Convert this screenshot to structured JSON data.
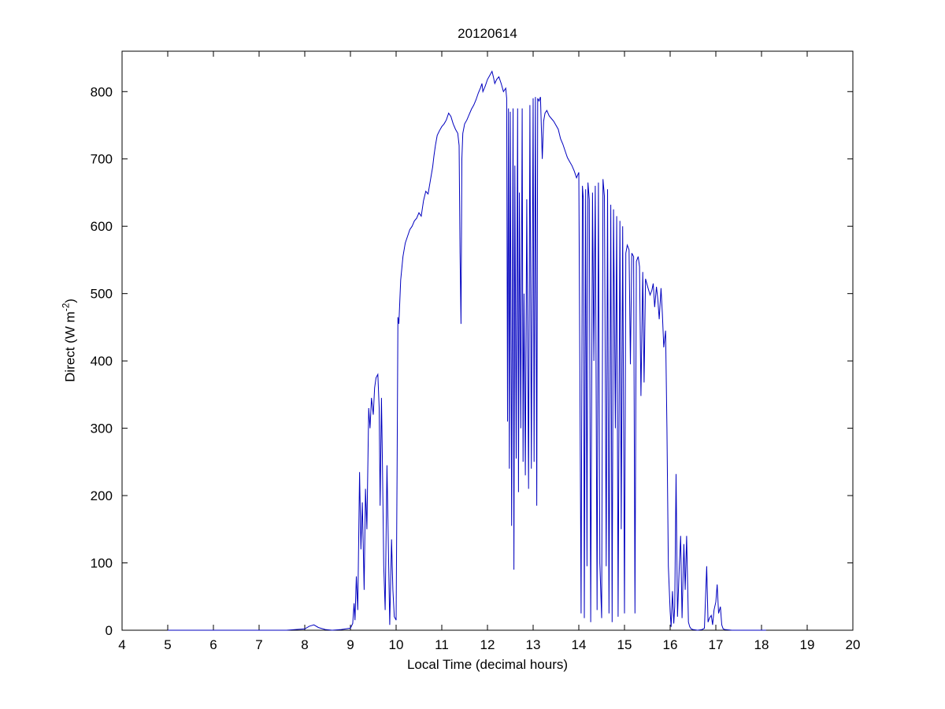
{
  "chart_data": {
    "type": "line",
    "title": "20120614",
    "xlabel": "Local Time (decimal hours)",
    "ylabel": {
      "pre": "Direct (W m",
      "sup": "-2",
      "post": ")"
    },
    "xlim": [
      4,
      20
    ],
    "ylim": [
      0,
      860
    ],
    "xticks": [
      4,
      5,
      6,
      7,
      8,
      9,
      10,
      11,
      12,
      13,
      14,
      15,
      16,
      17,
      18,
      19,
      20
    ],
    "yticks": [
      0,
      100,
      200,
      300,
      400,
      500,
      600,
      700,
      800
    ],
    "grid": false,
    "legend": "none",
    "colors": {
      "line": "#0000bf",
      "axis": "#000000",
      "background": "#ffffff"
    },
    "series": [
      {
        "name": "Direct",
        "points": [
          [
            5.0,
            0
          ],
          [
            5.3,
            0
          ],
          [
            5.6,
            0
          ],
          [
            6.0,
            0
          ],
          [
            6.4,
            0
          ],
          [
            6.8,
            0
          ],
          [
            7.2,
            0
          ],
          [
            7.6,
            0
          ],
          [
            8.0,
            2
          ],
          [
            8.1,
            6
          ],
          [
            8.2,
            8
          ],
          [
            8.3,
            4
          ],
          [
            8.45,
            1
          ],
          [
            8.6,
            0
          ],
          [
            8.8,
            1
          ],
          [
            9.0,
            3
          ],
          [
            9.05,
            10
          ],
          [
            9.08,
            40
          ],
          [
            9.1,
            15
          ],
          [
            9.13,
            80
          ],
          [
            9.16,
            30
          ],
          [
            9.2,
            235
          ],
          [
            9.23,
            120
          ],
          [
            9.26,
            190
          ],
          [
            9.3,
            60
          ],
          [
            9.33,
            210
          ],
          [
            9.36,
            150
          ],
          [
            9.4,
            330
          ],
          [
            9.43,
            300
          ],
          [
            9.46,
            345
          ],
          [
            9.5,
            320
          ],
          [
            9.53,
            360
          ],
          [
            9.56,
            375
          ],
          [
            9.6,
            380
          ],
          [
            9.63,
            330
          ],
          [
            9.65,
            185
          ],
          [
            9.68,
            345
          ],
          [
            9.7,
            250
          ],
          [
            9.73,
            95
          ],
          [
            9.76,
            30
          ],
          [
            9.8,
            245
          ],
          [
            9.83,
            130
          ],
          [
            9.86,
            8
          ],
          [
            9.9,
            135
          ],
          [
            9.93,
            60
          ],
          [
            9.96,
            20
          ],
          [
            10.0,
            15
          ],
          [
            10.02,
            230
          ],
          [
            10.04,
            465
          ],
          [
            10.06,
            455
          ],
          [
            10.1,
            520
          ],
          [
            10.15,
            555
          ],
          [
            10.2,
            575
          ],
          [
            10.25,
            585
          ],
          [
            10.3,
            595
          ],
          [
            10.35,
            600
          ],
          [
            10.4,
            608
          ],
          [
            10.45,
            612
          ],
          [
            10.5,
            620
          ],
          [
            10.55,
            615
          ],
          [
            10.6,
            638
          ],
          [
            10.65,
            652
          ],
          [
            10.7,
            648
          ],
          [
            10.75,
            668
          ],
          [
            10.8,
            688
          ],
          [
            10.83,
            705
          ],
          [
            10.86,
            720
          ],
          [
            10.9,
            735
          ],
          [
            10.95,
            742
          ],
          [
            11.0,
            748
          ],
          [
            11.05,
            752
          ],
          [
            11.1,
            758
          ],
          [
            11.15,
            768
          ],
          [
            11.2,
            763
          ],
          [
            11.25,
            752
          ],
          [
            11.3,
            744
          ],
          [
            11.35,
            738
          ],
          [
            11.38,
            720
          ],
          [
            11.4,
            560
          ],
          [
            11.42,
            455
          ],
          [
            11.44,
            700
          ],
          [
            11.46,
            738
          ],
          [
            11.5,
            752
          ],
          [
            11.55,
            758
          ],
          [
            11.6,
            766
          ],
          [
            11.65,
            774
          ],
          [
            11.7,
            780
          ],
          [
            11.75,
            788
          ],
          [
            11.8,
            798
          ],
          [
            11.85,
            806
          ],
          [
            11.88,
            812
          ],
          [
            11.9,
            800
          ],
          [
            11.95,
            808
          ],
          [
            12.0,
            818
          ],
          [
            12.05,
            824
          ],
          [
            12.1,
            830
          ],
          [
            12.13,
            822
          ],
          [
            12.16,
            812
          ],
          [
            12.2,
            818
          ],
          [
            12.25,
            822
          ],
          [
            12.3,
            812
          ],
          [
            12.35,
            800
          ],
          [
            12.4,
            805
          ],
          [
            12.42,
            790
          ],
          [
            12.44,
            310
          ],
          [
            12.46,
            775
          ],
          [
            12.48,
            240
          ],
          [
            12.5,
            770
          ],
          [
            12.53,
            155
          ],
          [
            12.56,
            775
          ],
          [
            12.58,
            90
          ],
          [
            12.6,
            690
          ],
          [
            12.63,
            255
          ],
          [
            12.66,
            775
          ],
          [
            12.68,
            205
          ],
          [
            12.7,
            650
          ],
          [
            12.73,
            300
          ],
          [
            12.76,
            775
          ],
          [
            12.78,
            250
          ],
          [
            12.8,
            500
          ],
          [
            12.83,
            230
          ],
          [
            12.86,
            640
          ],
          [
            12.9,
            210
          ],
          [
            12.93,
            780
          ],
          [
            12.96,
            240
          ],
          [
            13.0,
            790
          ],
          [
            13.02,
            250
          ],
          [
            13.05,
            792
          ],
          [
            13.08,
            185
          ],
          [
            13.1,
            790
          ],
          [
            13.13,
            786
          ],
          [
            13.16,
            792
          ],
          [
            13.2,
            700
          ],
          [
            13.23,
            756
          ],
          [
            13.26,
            768
          ],
          [
            13.3,
            772
          ],
          [
            13.35,
            764
          ],
          [
            13.4,
            760
          ],
          [
            13.45,
            756
          ],
          [
            13.5,
            750
          ],
          [
            13.55,
            744
          ],
          [
            13.6,
            730
          ],
          [
            13.65,
            722
          ],
          [
            13.7,
            712
          ],
          [
            13.75,
            702
          ],
          [
            13.8,
            696
          ],
          [
            13.85,
            690
          ],
          [
            13.9,
            682
          ],
          [
            13.95,
            672
          ],
          [
            14.0,
            680
          ],
          [
            14.03,
            300
          ],
          [
            14.05,
            25
          ],
          [
            14.08,
            660
          ],
          [
            14.1,
            640
          ],
          [
            14.12,
            18
          ],
          [
            14.15,
            655
          ],
          [
            14.18,
            95
          ],
          [
            14.2,
            665
          ],
          [
            14.23,
            640
          ],
          [
            14.26,
            12
          ],
          [
            14.3,
            650
          ],
          [
            14.33,
            400
          ],
          [
            14.36,
            660
          ],
          [
            14.4,
            30
          ],
          [
            14.43,
            665
          ],
          [
            14.46,
            100
          ],
          [
            14.5,
            18
          ],
          [
            14.53,
            670
          ],
          [
            14.56,
            645
          ],
          [
            14.6,
            95
          ],
          [
            14.63,
            655
          ],
          [
            14.66,
            25
          ],
          [
            14.7,
            632
          ],
          [
            14.73,
            12
          ],
          [
            14.76,
            625
          ],
          [
            14.8,
            300
          ],
          [
            14.83,
            615
          ],
          [
            14.86,
            20
          ],
          [
            14.9,
            608
          ],
          [
            14.93,
            150
          ],
          [
            14.96,
            600
          ],
          [
            15.0,
            25
          ],
          [
            15.03,
            560
          ],
          [
            15.06,
            572
          ],
          [
            15.1,
            565
          ],
          [
            15.13,
            395
          ],
          [
            15.16,
            560
          ],
          [
            15.2,
            555
          ],
          [
            15.23,
            25
          ],
          [
            15.26,
            548
          ],
          [
            15.3,
            555
          ],
          [
            15.33,
            540
          ],
          [
            15.36,
            348
          ],
          [
            15.4,
            532
          ],
          [
            15.43,
            368
          ],
          [
            15.46,
            522
          ],
          [
            15.5,
            512
          ],
          [
            15.53,
            505
          ],
          [
            15.56,
            498
          ],
          [
            15.6,
            505
          ],
          [
            15.63,
            515
          ],
          [
            15.66,
            480
          ],
          [
            15.7,
            510
          ],
          [
            15.73,
            492
          ],
          [
            15.76,
            462
          ],
          [
            15.8,
            508
          ],
          [
            15.83,
            470
          ],
          [
            15.86,
            420
          ],
          [
            15.9,
            445
          ],
          [
            15.93,
            300
          ],
          [
            15.96,
            95
          ],
          [
            16.0,
            28
          ],
          [
            16.02,
            5
          ],
          [
            16.05,
            58
          ],
          [
            16.08,
            10
          ],
          [
            16.1,
            35
          ],
          [
            16.13,
            232
          ],
          [
            16.16,
            20
          ],
          [
            16.2,
            95
          ],
          [
            16.23,
            140
          ],
          [
            16.26,
            18
          ],
          [
            16.3,
            128
          ],
          [
            16.33,
            60
          ],
          [
            16.36,
            140
          ],
          [
            16.4,
            12
          ],
          [
            16.43,
            5
          ],
          [
            16.46,
            2
          ],
          [
            16.5,
            1
          ],
          [
            16.6,
            0
          ],
          [
            16.7,
            1
          ],
          [
            16.75,
            3
          ],
          [
            16.8,
            95
          ],
          [
            16.83,
            12
          ],
          [
            16.86,
            18
          ],
          [
            16.9,
            22
          ],
          [
            16.93,
            8
          ],
          [
            16.96,
            30
          ],
          [
            17.0,
            42
          ],
          [
            17.03,
            68
          ],
          [
            17.06,
            25
          ],
          [
            17.1,
            35
          ],
          [
            17.13,
            8
          ],
          [
            17.16,
            2
          ],
          [
            17.2,
            1
          ],
          [
            17.35,
            0
          ],
          [
            17.6,
            0
          ],
          [
            17.85,
            0
          ],
          [
            18.1,
            0
          ]
        ]
      }
    ]
  }
}
